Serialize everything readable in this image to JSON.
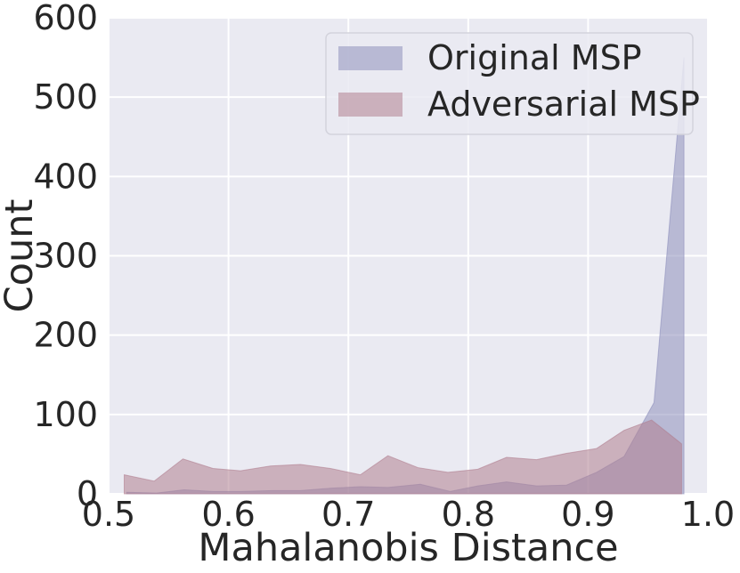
{
  "chart_data": {
    "type": "area",
    "title": "",
    "xlabel": "Mahalanobis Distance",
    "ylabel": "Count",
    "xlim": [
      0.5,
      1.0
    ],
    "ylim": [
      0,
      600
    ],
    "xticks": [
      "0.5",
      "0.6",
      "0.7",
      "0.8",
      "0.9",
      "1.0"
    ],
    "yticks": [
      "0",
      "100",
      "200",
      "300",
      "400",
      "500",
      "600"
    ],
    "grid": true,
    "legend": "top-right",
    "series": [
      {
        "name": "Original MSP",
        "color": "#8e8fbc",
        "x": [
          0.515,
          0.54,
          0.563,
          0.587,
          0.61,
          0.637,
          0.66,
          0.685,
          0.71,
          0.733,
          0.76,
          0.785,
          0.808,
          0.832,
          0.857,
          0.882,
          0.907,
          0.93,
          0.955,
          0.98
        ],
        "y": [
          2,
          1,
          5,
          3,
          3,
          4,
          4,
          7,
          9,
          8,
          12,
          3,
          10,
          15,
          10,
          11,
          27,
          47,
          115,
          550
        ]
      },
      {
        "name": "Adversarial MSP",
        "color": "#b17f90",
        "x": [
          0.513,
          0.538,
          0.562,
          0.587,
          0.61,
          0.635,
          0.66,
          0.685,
          0.71,
          0.733,
          0.758,
          0.783,
          0.808,
          0.832,
          0.857,
          0.882,
          0.907,
          0.93,
          0.953,
          0.978
        ],
        "y": [
          24,
          16,
          44,
          32,
          29,
          35,
          37,
          32,
          24,
          48,
          33,
          27,
          31,
          46,
          43,
          51,
          57,
          80,
          93,
          63
        ]
      }
    ]
  }
}
